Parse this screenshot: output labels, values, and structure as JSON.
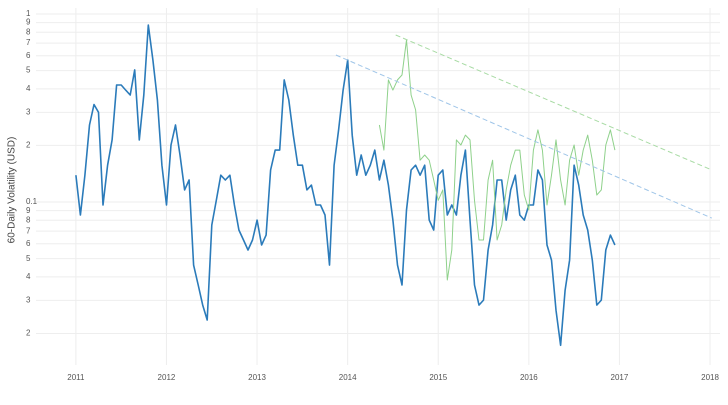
{
  "chart_data": {
    "type": "line",
    "y_label": "60-Daily Volatility (USD)",
    "log_y": true,
    "grid": true,
    "xlim": [
      2010.56,
      2018.11
    ],
    "xticks": [
      2011,
      2012,
      2013,
      2014,
      2015,
      2016,
      2017,
      2018
    ],
    "ylim": [
      0.0136,
      1.076
    ],
    "yticks": [
      {
        "value": 0.02,
        "label": "2"
      },
      {
        "value": 0.03,
        "label": "3"
      },
      {
        "value": 0.04,
        "label": "4"
      },
      {
        "value": 0.05,
        "label": "5"
      },
      {
        "value": 0.06,
        "label": "6"
      },
      {
        "value": 0.07,
        "label": "7"
      },
      {
        "value": 0.08,
        "label": "8"
      },
      {
        "value": 0.09,
        "label": "9"
      },
      0.1,
      {
        "value": 0.2,
        "label": "2"
      },
      {
        "value": 0.3,
        "label": "3"
      },
      {
        "value": 0.4,
        "label": "4"
      },
      {
        "value": 0.5,
        "label": "5"
      },
      {
        "value": 0.6,
        "label": "6"
      },
      {
        "value": 0.7,
        "label": "7"
      },
      {
        "value": 0.8,
        "label": "8"
      },
      {
        "value": 0.9,
        "label": "9"
      },
      1
    ],
    "x": [
      2011,
      2011.05,
      2011.1,
      2011.15,
      2011.2,
      2011.25,
      2011.3,
      2011.35,
      2011.4,
      2011.45,
      2011.5,
      2011.55,
      2011.6,
      2011.65,
      2011.7,
      2011.75,
      2011.8,
      2011.85,
      2011.9,
      2011.95,
      2012,
      2012.05,
      2012.1,
      2012.15,
      2012.2,
      2012.25,
      2012.3,
      2012.35,
      2012.4,
      2012.45,
      2012.5,
      2012.55,
      2012.6,
      2012.65,
      2012.7,
      2012.75,
      2012.8,
      2012.85,
      2012.9,
      2012.95,
      2013,
      2013.05,
      2013.1,
      2013.15,
      2013.2,
      2013.25,
      2013.3,
      2013.35,
      2013.4,
      2013.45,
      2013.5,
      2013.55,
      2013.6,
      2013.65,
      2013.7,
      2013.75,
      2013.8,
      2013.85,
      2013.9,
      2013.95,
      2014,
      2014.05,
      2014.1,
      2014.15,
      2014.2,
      2014.25,
      2014.3,
      2014.35,
      2014.4,
      2014.45,
      2014.5,
      2014.55,
      2014.6,
      2014.65,
      2014.7,
      2014.75,
      2014.8,
      2014.85,
      2014.9,
      2014.95,
      2015,
      2015.05,
      2015.1,
      2015.15,
      2015.2,
      2015.25,
      2015.3,
      2015.35,
      2015.4,
      2015.45,
      2015.5,
      2015.55,
      2015.6,
      2015.65,
      2015.7,
      2015.75,
      2015.8,
      2015.85,
      2015.9,
      2015.95,
      2016,
      2016.05,
      2016.1,
      2016.15,
      2016.2,
      2016.25,
      2016.3,
      2016.35,
      2016.4,
      2016.45,
      2016.5,
      2016.55,
      2016.6,
      2016.65,
      2016.7,
      2016.75,
      2016.8,
      2016.85,
      2016.9,
      2016.95
    ],
    "series": [
      {
        "color": "#2b7bba",
        "width": 1.6,
        "values": [
          0.139,
          0.0853,
          0.139,
          0.257,
          0.33,
          0.3,
          0.0964,
          0.157,
          0.214,
          0.419,
          0.419,
          0.394,
          0.371,
          0.504,
          0.214,
          0.371,
          0.874,
          0.569,
          0.349,
          0.157,
          0.0964,
          0.201,
          0.257,
          0.178,
          0.116,
          0.131,
          0.0462,
          0.0362,
          0.0283,
          0.0236,
          0.0755,
          0.102,
          0.139,
          0.131,
          0.139,
          0.0964,
          0.071,
          0.0628,
          0.0556,
          0.0628,
          0.0802,
          0.0591,
          0.0667,
          0.148,
          0.189,
          0.189,
          0.446,
          0.349,
          0.227,
          0.157,
          0.157,
          0.116,
          0.123,
          0.0964,
          0.0964,
          0.0853,
          0.0462,
          0.157,
          0.242,
          0.394,
          0.569,
          0.227,
          0.139,
          0.178,
          0.139,
          0.157,
          0.189,
          0.131,
          0.167,
          0.123,
          0.0802,
          0.0462,
          0.0362,
          0.0907,
          0.148,
          0.157,
          0.139,
          0.157,
          0.0802,
          0.071,
          0.139,
          0.148,
          0.0853,
          0.0964,
          0.0853,
          0.139,
          0.189,
          0.0802,
          0.0362,
          0.0283,
          0.0301,
          0.0556,
          0.0755,
          0.131,
          0.131,
          0.0802,
          0.116,
          0.139,
          0.0853,
          0.0802,
          0.0964,
          0.0964,
          0.148,
          0.131,
          0.0591,
          0.0491,
          0.0266,
          0.0173,
          0.034,
          0.0491,
          0.157,
          0.123,
          0.0853,
          0.071,
          0.0491,
          0.0283,
          0.0301,
          0.0556,
          0.0667,
          0.0591
        ]
      },
      {
        "color": "#8fd18b",
        "width": 1,
        "values": [
          null,
          null,
          null,
          null,
          null,
          null,
          null,
          null,
          null,
          null,
          null,
          null,
          null,
          null,
          null,
          null,
          null,
          null,
          null,
          null,
          null,
          null,
          null,
          null,
          null,
          null,
          null,
          null,
          null,
          null,
          null,
          null,
          null,
          null,
          null,
          null,
          null,
          null,
          null,
          null,
          null,
          null,
          null,
          null,
          null,
          null,
          null,
          null,
          null,
          null,
          null,
          null,
          null,
          null,
          null,
          null,
          null,
          null,
          null,
          null,
          null,
          null,
          null,
          null,
          null,
          null,
          null,
          0.257,
          0.189,
          0.446,
          0.394,
          0.446,
          0.474,
          0.727,
          0.371,
          0.309,
          0.167,
          0.178,
          0.167,
          0.131,
          0.102,
          0.116,
          0.0385,
          0.0556,
          0.214,
          0.201,
          0.227,
          0.214,
          0.102,
          0.0628,
          0.0628,
          0.131,
          0.167,
          0.0628,
          0.0755,
          0.116,
          0.157,
          0.189,
          0.189,
          0.109,
          0.0907,
          0.189,
          0.242,
          0.189,
          0.0964,
          0.139,
          0.214,
          0.131,
          0.0964,
          0.167,
          0.201,
          0.139,
          0.189,
          0.227,
          0.167,
          0.109,
          0.116,
          0.201,
          0.242,
          0.189
        ]
      },
      {
        "color": "#9fc5e8",
        "width": 1,
        "dash": true,
        "x": [
          2013.87,
          2018.02
        ],
        "values": [
          0.605,
          0.0822
        ]
      },
      {
        "color": "#a8dba4",
        "width": 1,
        "dash": true,
        "x": [
          2014.53,
          2018.02
        ],
        "values": [
          0.773,
          0.148
        ]
      }
    ]
  }
}
